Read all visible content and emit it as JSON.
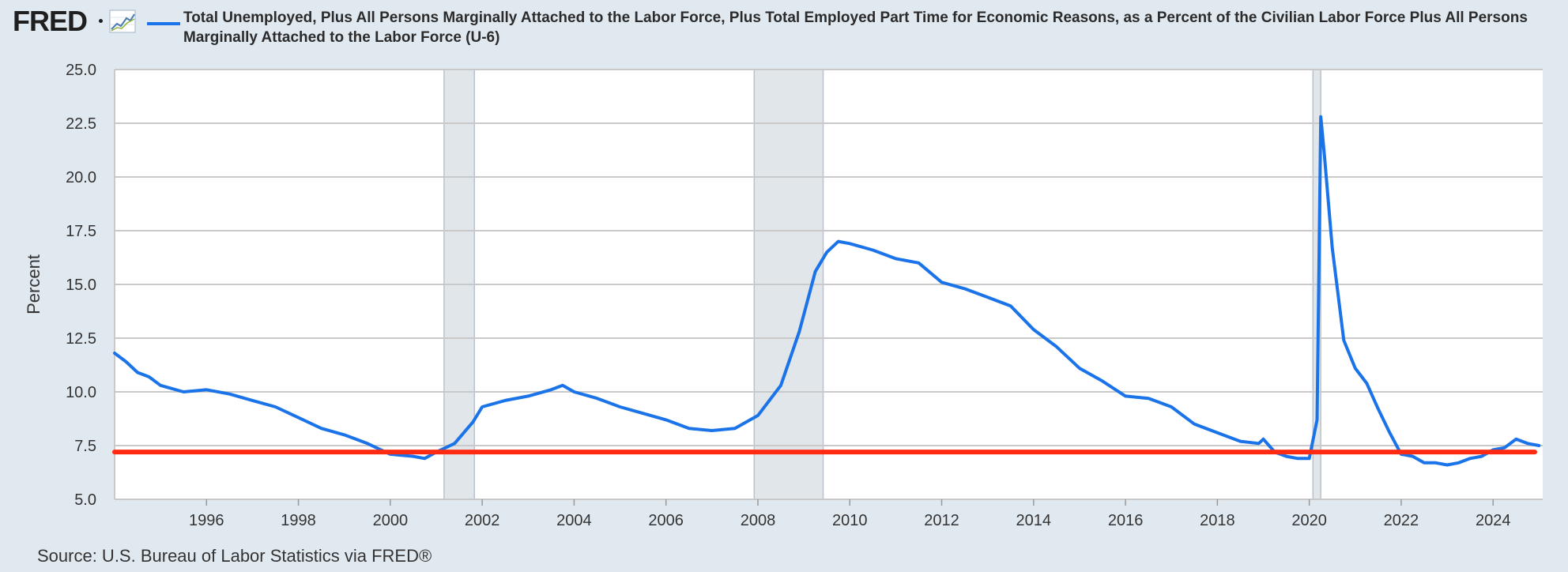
{
  "header": {
    "logo_text": "FRED",
    "series_title": "Total Unemployed, Plus All Persons Marginally Attached to the Labor Force, Plus Total Employed Part Time for Economic Reasons, as a Percent of the Civilian Labor Force Plus All Persons Marginally Attached to the Labor Force (U-6)"
  },
  "source": "Source: U.S. Bureau of Labor Statistics via FRED®",
  "colors": {
    "page_background": "#e1e9f0",
    "plot_background": "#ffffff",
    "series_line": "#1a73e8",
    "recession_shading": "#e1e6eb",
    "reference_line": "#ff2a12"
  },
  "chart_data": {
    "type": "line",
    "title": "",
    "xlabel": "",
    "ylabel": "Percent",
    "xlim": [
      1994.0,
      2025.08
    ],
    "ylim": [
      5.0,
      25.0
    ],
    "yticks": [
      "5.0",
      "7.5",
      "10.0",
      "12.5",
      "15.0",
      "17.5",
      "20.0",
      "22.5",
      "25.0"
    ],
    "xticks": [
      "1996",
      "1998",
      "2000",
      "2002",
      "2004",
      "2006",
      "2008",
      "2010",
      "2012",
      "2014",
      "2016",
      "2018",
      "2020",
      "2022",
      "2024"
    ],
    "grid": true,
    "legend": "top",
    "recessions": [
      [
        2001.17,
        2001.83
      ],
      [
        2007.92,
        2009.42
      ],
      [
        2020.08,
        2020.25
      ]
    ],
    "reference_line": {
      "y": 7.2
    },
    "series": [
      {
        "name": "Total Unemployed, Plus All Persons Marginally Attached to the Labor Force, Plus Total Employed Part Time for Economic Reasons, as a Percent of the Civilian Labor Force Plus All Persons Marginally Attached to the Labor Force (U-6)",
        "points": [
          [
            1994.0,
            11.8
          ],
          [
            1994.25,
            11.4
          ],
          [
            1994.5,
            10.9
          ],
          [
            1994.75,
            10.7
          ],
          [
            1995.0,
            10.3
          ],
          [
            1995.5,
            10.0
          ],
          [
            1996.0,
            10.1
          ],
          [
            1996.5,
            9.9
          ],
          [
            1997.0,
            9.6
          ],
          [
            1997.5,
            9.3
          ],
          [
            1998.0,
            8.8
          ],
          [
            1998.5,
            8.3
          ],
          [
            1999.0,
            8.0
          ],
          [
            1999.5,
            7.6
          ],
          [
            2000.0,
            7.1
          ],
          [
            2000.5,
            7.0
          ],
          [
            2000.75,
            6.9
          ],
          [
            2001.0,
            7.2
          ],
          [
            2001.4,
            7.6
          ],
          [
            2001.8,
            8.6
          ],
          [
            2002.0,
            9.3
          ],
          [
            2002.5,
            9.6
          ],
          [
            2003.0,
            9.8
          ],
          [
            2003.5,
            10.1
          ],
          [
            2003.75,
            10.3
          ],
          [
            2004.0,
            10.0
          ],
          [
            2004.5,
            9.7
          ],
          [
            2005.0,
            9.3
          ],
          [
            2005.5,
            9.0
          ],
          [
            2006.0,
            8.7
          ],
          [
            2006.5,
            8.3
          ],
          [
            2007.0,
            8.2
          ],
          [
            2007.5,
            8.3
          ],
          [
            2008.0,
            8.9
          ],
          [
            2008.5,
            10.3
          ],
          [
            2008.9,
            12.8
          ],
          [
            2009.25,
            15.6
          ],
          [
            2009.5,
            16.5
          ],
          [
            2009.75,
            17.0
          ],
          [
            2010.0,
            16.9
          ],
          [
            2010.5,
            16.6
          ],
          [
            2011.0,
            16.2
          ],
          [
            2011.5,
            16.0
          ],
          [
            2012.0,
            15.1
          ],
          [
            2012.5,
            14.8
          ],
          [
            2013.0,
            14.4
          ],
          [
            2013.5,
            14.0
          ],
          [
            2014.0,
            12.9
          ],
          [
            2014.5,
            12.1
          ],
          [
            2015.0,
            11.1
          ],
          [
            2015.5,
            10.5
          ],
          [
            2016.0,
            9.8
          ],
          [
            2016.5,
            9.7
          ],
          [
            2017.0,
            9.3
          ],
          [
            2017.5,
            8.5
          ],
          [
            2018.0,
            8.1
          ],
          [
            2018.5,
            7.7
          ],
          [
            2018.9,
            7.6
          ],
          [
            2019.0,
            7.8
          ],
          [
            2019.25,
            7.2
          ],
          [
            2019.5,
            7.0
          ],
          [
            2019.75,
            6.9
          ],
          [
            2020.0,
            6.9
          ],
          [
            2020.17,
            8.7
          ],
          [
            2020.25,
            22.8
          ],
          [
            2020.33,
            21.0
          ],
          [
            2020.5,
            16.7
          ],
          [
            2020.75,
            12.4
          ],
          [
            2021.0,
            11.1
          ],
          [
            2021.25,
            10.4
          ],
          [
            2021.5,
            9.2
          ],
          [
            2021.75,
            8.1
          ],
          [
            2022.0,
            7.1
          ],
          [
            2022.25,
            7.0
          ],
          [
            2022.5,
            6.7
          ],
          [
            2022.75,
            6.7
          ],
          [
            2023.0,
            6.6
          ],
          [
            2023.25,
            6.7
          ],
          [
            2023.5,
            6.9
          ],
          [
            2023.75,
            7.0
          ],
          [
            2024.0,
            7.3
          ],
          [
            2024.25,
            7.4
          ],
          [
            2024.5,
            7.8
          ],
          [
            2024.75,
            7.6
          ],
          [
            2025.0,
            7.5
          ]
        ]
      }
    ]
  }
}
